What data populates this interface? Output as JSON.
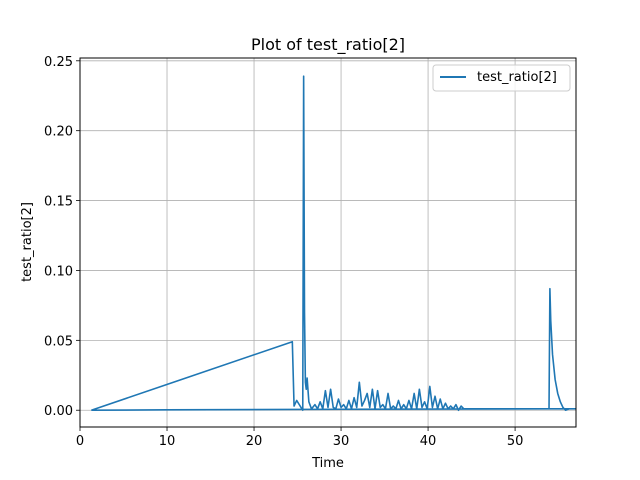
{
  "chart_data": {
    "type": "line",
    "title": "Plot of test_ratio[2]",
    "xlabel": "Time",
    "ylabel": "test_ratio[2]",
    "xlim": [
      0,
      57
    ],
    "ylim": [
      -0.012,
      0.252
    ],
    "xticks": [
      0,
      10,
      20,
      30,
      40,
      50
    ],
    "xtick_labels": [
      "0",
      "10",
      "20",
      "30",
      "40",
      "50"
    ],
    "yticks": [
      0.0,
      0.05,
      0.1,
      0.15,
      0.2,
      0.25
    ],
    "ytick_labels": [
      "0.00",
      "0.05",
      "0.10",
      "0.15",
      "0.20",
      "0.25"
    ],
    "grid": true,
    "legend_position": "top-right",
    "color": "#1f77b4",
    "series": [
      {
        "name": "test_ratio[2]",
        "x": [
          1.3,
          24.4,
          24.6,
          24.9,
          25.2,
          25.4,
          25.6,
          25.7,
          25.8,
          25.9,
          26.0,
          26.1,
          26.3,
          26.6,
          27.0,
          27.3,
          27.6,
          27.9,
          28.2,
          28.5,
          28.8,
          29.1,
          29.4,
          29.7,
          30.0,
          30.3,
          30.6,
          30.9,
          31.2,
          31.5,
          31.8,
          32.1,
          32.4,
          32.7,
          33.0,
          33.3,
          33.6,
          33.9,
          34.2,
          34.5,
          34.8,
          35.1,
          35.4,
          35.7,
          36.0,
          36.3,
          36.6,
          36.9,
          37.2,
          37.5,
          37.8,
          38.1,
          38.4,
          38.7,
          39.0,
          39.3,
          39.6,
          39.9,
          40.2,
          40.5,
          40.8,
          41.1,
          41.4,
          41.7,
          42.0,
          42.3,
          42.6,
          42.9,
          43.2,
          43.5,
          43.8,
          44.1,
          46.0,
          50.0,
          53.9,
          54.0,
          54.1,
          54.3,
          54.6,
          54.9,
          55.2,
          55.5,
          55.8,
          56.2,
          56.6,
          57.0,
          53.9,
          30.0,
          10.0,
          1.3
        ],
        "y": [
          0.0,
          0.049,
          0.003,
          0.007,
          0.004,
          0.002,
          0.0,
          0.239,
          0.07,
          0.02,
          0.015,
          0.023,
          0.006,
          0.001,
          0.004,
          0.001,
          0.006,
          0.001,
          0.014,
          0.002,
          0.015,
          0.002,
          0.001,
          0.008,
          0.002,
          0.004,
          0.001,
          0.007,
          0.001,
          0.009,
          0.002,
          0.02,
          0.003,
          0.007,
          0.012,
          0.002,
          0.015,
          0.001,
          0.014,
          0.002,
          0.004,
          0.001,
          0.012,
          0.001,
          0.003,
          0.001,
          0.007,
          0.001,
          0.004,
          0.001,
          0.007,
          0.001,
          0.012,
          0.001,
          0.015,
          0.002,
          0.006,
          0.001,
          0.017,
          0.002,
          0.01,
          0.001,
          0.008,
          0.001,
          0.005,
          0.001,
          0.003,
          0.001,
          0.004,
          0.0,
          0.003,
          0.001,
          0.001,
          0.001,
          0.001,
          0.087,
          0.064,
          0.04,
          0.022,
          0.012,
          0.006,
          0.002,
          0.0,
          0.001,
          0.001,
          0.001,
          0.001,
          0.0007,
          0.0003,
          0.0
        ]
      }
    ]
  }
}
